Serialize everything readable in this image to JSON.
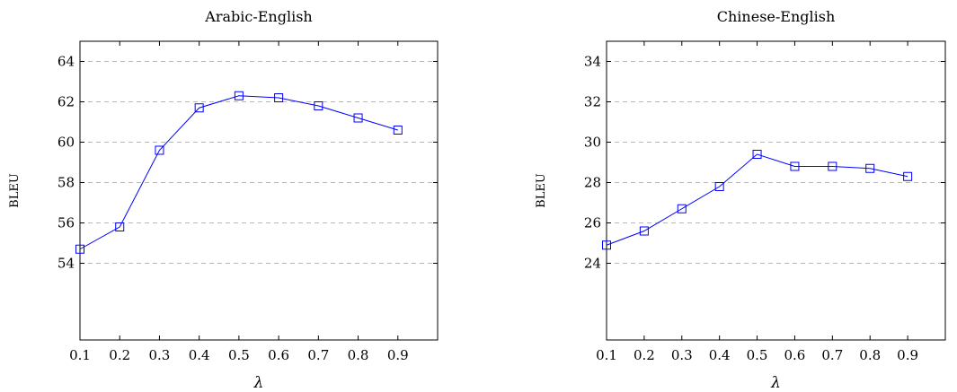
{
  "chart_data": [
    {
      "type": "line",
      "title": "Arabic-English",
      "xlabel": "λ",
      "ylabel": "BLEU",
      "x": [
        0.1,
        0.2,
        0.3,
        0.4,
        0.5,
        0.6,
        0.7,
        0.8,
        0.9
      ],
      "x_ticks": [
        "0.1",
        "0.2",
        "0.3",
        "0.4",
        "0.5",
        "0.6",
        "0.7",
        "0.8",
        "0.9"
      ],
      "xlim": [
        0.1,
        1.0
      ],
      "y_ticks": [
        "54",
        "56",
        "58",
        "60",
        "62",
        "64"
      ],
      "ylim": [
        50.2,
        65
      ],
      "grid": "horizontal dashed",
      "series": [
        {
          "values": [
            54.7,
            55.8,
            59.6,
            61.7,
            62.3,
            62.2,
            61.8,
            61.2,
            60.6
          ],
          "color": "#0000ff",
          "marker": "square"
        }
      ]
    },
    {
      "type": "line",
      "title": "Chinese-English",
      "xlabel": "λ",
      "ylabel": "BLEU",
      "x": [
        0.1,
        0.2,
        0.3,
        0.4,
        0.5,
        0.6,
        0.7,
        0.8,
        0.9
      ],
      "x_ticks": [
        "0.1",
        "0.2",
        "0.3",
        "0.4",
        "0.5",
        "0.6",
        "0.7",
        "0.8",
        "0.9"
      ],
      "xlim": [
        0.1,
        1.0
      ],
      "y_ticks": [
        "24",
        "26",
        "28",
        "30",
        "32",
        "34"
      ],
      "ylim": [
        20.2,
        35
      ],
      "grid": "horizontal dashed",
      "series": [
        {
          "values": [
            24.9,
            25.6,
            26.7,
            27.8,
            29.4,
            28.8,
            28.8,
            28.7,
            28.3
          ],
          "color": "#0000ff",
          "marker": "square"
        }
      ]
    }
  ]
}
